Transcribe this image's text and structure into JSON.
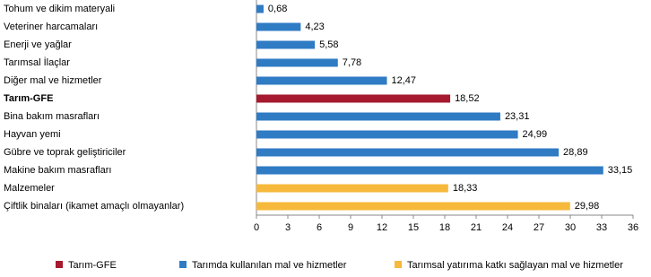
{
  "chart_data": {
    "type": "bar",
    "orientation": "horizontal",
    "categories": [
      "Tohum ve dikim materyali",
      "Veteriner harcamaları",
      "Enerji  ve yağlar",
      "Tarımsal İlaçlar",
      "Diğer mal ve hizmetler",
      "Tarım-GFE",
      "Bina bakım masrafları",
      "Hayvan yemi",
      "Gübre ve toprak geliştiriciler",
      "Makine bakım masrafları",
      "Malzemeler",
      "Çiftlik binaları (ikamet amaçlı olmayanlar)"
    ],
    "series": [
      {
        "name": "Tarım-GFE",
        "color": "#a6192e",
        "values": [
          null,
          null,
          null,
          null,
          null,
          18.52,
          null,
          null,
          null,
          null,
          null,
          null
        ],
        "value_labels": [
          null,
          null,
          null,
          null,
          null,
          "18,52",
          null,
          null,
          null,
          null,
          null,
          null
        ]
      },
      {
        "name": "Tarımda kullanılan mal ve hizmetler",
        "color": "#2f7bc4",
        "values": [
          0.68,
          4.23,
          5.58,
          7.78,
          12.47,
          null,
          23.31,
          24.99,
          28.89,
          33.15,
          null,
          null
        ],
        "value_labels": [
          "0,68",
          "4,23",
          "5,58",
          "7,78",
          "12,47",
          null,
          "23,31",
          "24,99",
          "28,89",
          "33,15",
          null,
          null
        ]
      },
      {
        "name": "Tarımsal yatırıma katkı sağlayan mal ve hizmetler",
        "color": "#f6b93b",
        "values": [
          null,
          null,
          null,
          null,
          null,
          null,
          null,
          null,
          null,
          null,
          18.33,
          29.98
        ],
        "value_labels": [
          null,
          null,
          null,
          null,
          null,
          null,
          null,
          null,
          null,
          null,
          "18,33",
          "29,98"
        ]
      }
    ],
    "xlim": [
      0,
      36
    ],
    "xticks": [
      0,
      3,
      6,
      9,
      12,
      15,
      18,
      21,
      24,
      27,
      30,
      33,
      36
    ]
  }
}
